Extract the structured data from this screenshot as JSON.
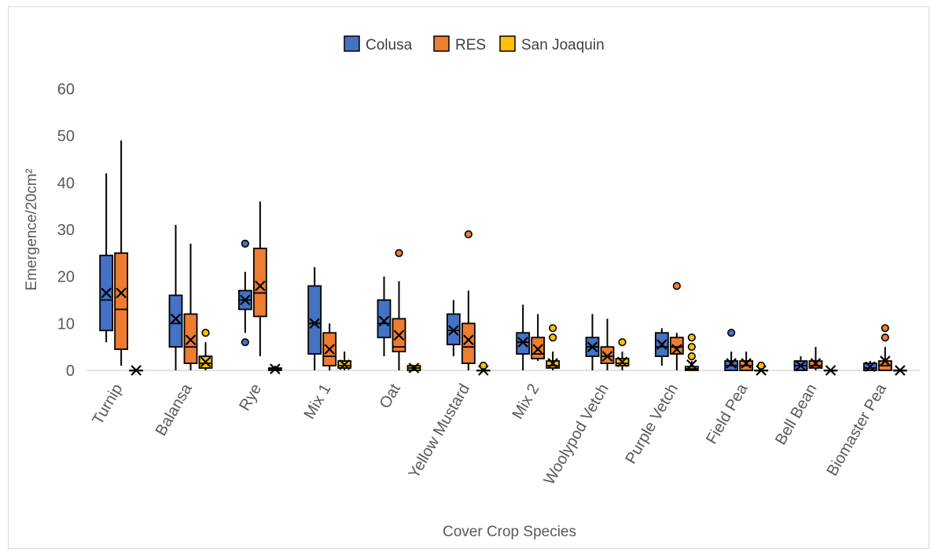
{
  "chart_data": {
    "type": "box",
    "xlabel": "Cover Crop Species",
    "ylabel": "Emergence/20cm²",
    "ylim": [
      0,
      60
    ],
    "yticks": [
      0,
      10,
      20,
      30,
      40,
      50,
      60
    ],
    "grid": false,
    "legend_position": "top-center",
    "categories": [
      "Turnip",
      "Balansa",
      "Rye",
      "Mix 1",
      "Oat",
      "Yellow Mustard",
      "Mix 2",
      "Woolypod Vetch",
      "Purple Vetch",
      "Field Pea",
      "Bell Bean",
      "Biomaster Pea"
    ],
    "series": [
      {
        "name": "Colusa",
        "color": "#4472c4",
        "boxes": [
          {
            "min": 6,
            "q1": 8.5,
            "median": 15,
            "q3": 24.5,
            "max": 42,
            "mean": 16.5,
            "outliers": []
          },
          {
            "min": 0,
            "q1": 5,
            "median": 10,
            "q3": 16,
            "max": 31,
            "mean": 11,
            "outliers": []
          },
          {
            "min": 8,
            "q1": 13,
            "median": 15,
            "q3": 17,
            "max": 21,
            "mean": 15,
            "outliers": [
              6,
              27
            ]
          },
          {
            "min": 0,
            "q1": 3.5,
            "median": 10,
            "q3": 18,
            "max": 22,
            "mean": 10,
            "outliers": []
          },
          {
            "min": 3,
            "q1": 7,
            "median": 10,
            "q3": 15,
            "max": 20,
            "mean": 10.5,
            "outliers": []
          },
          {
            "min": 3,
            "q1": 5.5,
            "median": 8.5,
            "q3": 12,
            "max": 15,
            "mean": 8.5,
            "outliers": []
          },
          {
            "min": 0,
            "q1": 3.5,
            "median": 6,
            "q3": 8,
            "max": 14,
            "mean": 6,
            "outliers": []
          },
          {
            "min": 0,
            "q1": 3,
            "median": 5,
            "q3": 7,
            "max": 12,
            "mean": 5,
            "outliers": []
          },
          {
            "min": 1,
            "q1": 3,
            "median": 5,
            "q3": 8,
            "max": 9,
            "mean": 5.5,
            "outliers": []
          },
          {
            "min": 0,
            "q1": 0,
            "median": 1,
            "q3": 2,
            "max": 4,
            "mean": 1.5,
            "outliers": [
              8
            ]
          },
          {
            "min": 0,
            "q1": 0,
            "median": 1,
            "q3": 2,
            "max": 3,
            "mean": 1,
            "outliers": []
          },
          {
            "min": 0,
            "q1": 0,
            "median": 0.5,
            "q3": 1.5,
            "max": 2,
            "mean": 0.8,
            "outliers": []
          }
        ]
      },
      {
        "name": "RES",
        "color": "#ed7d31",
        "boxes": [
          {
            "min": 1,
            "q1": 4.5,
            "median": 13,
            "q3": 25,
            "max": 49,
            "mean": 16.5,
            "outliers": []
          },
          {
            "min": 0,
            "q1": 1.5,
            "median": 5,
            "q3": 12,
            "max": 27,
            "mean": 6.5,
            "outliers": []
          },
          {
            "min": 3,
            "q1": 11.5,
            "median": 16.5,
            "q3": 26,
            "max": 36,
            "mean": 18,
            "outliers": []
          },
          {
            "min": 0,
            "q1": 1,
            "median": 3,
            "q3": 8,
            "max": 10,
            "mean": 4.5,
            "outliers": []
          },
          {
            "min": 0,
            "q1": 4,
            "median": 5,
            "q3": 11,
            "max": 19,
            "mean": 7.5,
            "outliers": [
              25
            ]
          },
          {
            "min": 0,
            "q1": 1.5,
            "median": 5,
            "q3": 10,
            "max": 17,
            "mean": 6.5,
            "outliers": [
              29
            ]
          },
          {
            "min": 2,
            "q1": 2.5,
            "median": 3.5,
            "q3": 7,
            "max": 12,
            "mean": 4.5,
            "outliers": []
          },
          {
            "min": 0,
            "q1": 1.5,
            "median": 3,
            "q3": 5,
            "max": 11,
            "mean": 3,
            "outliers": []
          },
          {
            "min": 0,
            "q1": 3.5,
            "median": 5,
            "q3": 7,
            "max": 8,
            "mean": 4.5,
            "outliers": [
              18
            ]
          },
          {
            "min": 0,
            "q1": 0,
            "median": 1,
            "q3": 2,
            "max": 4,
            "mean": 1.5,
            "outliers": []
          },
          {
            "min": 0,
            "q1": 0.5,
            "median": 1,
            "q3": 2,
            "max": 5,
            "mean": 1.5,
            "outliers": []
          },
          {
            "min": 0,
            "q1": 0,
            "median": 1,
            "q3": 2,
            "max": 5,
            "mean": 2,
            "outliers": [
              7,
              9
            ]
          }
        ]
      },
      {
        "name": "San Joaquin",
        "color": "#ffc000",
        "boxes": [
          {
            "min": 0,
            "q1": 0,
            "median": 0,
            "q3": 0,
            "max": 0,
            "mean": 0,
            "outliers": []
          },
          {
            "min": 0,
            "q1": 0.5,
            "median": 1.5,
            "q3": 3,
            "max": 6,
            "mean": 1.8,
            "outliers": [
              8
            ]
          },
          {
            "min": 0,
            "q1": 0,
            "median": 0.2,
            "q3": 0.5,
            "max": 1,
            "mean": 0.3,
            "outliers": []
          },
          {
            "min": 0,
            "q1": 0.5,
            "median": 1,
            "q3": 2,
            "max": 4,
            "mean": 1.2,
            "outliers": []
          },
          {
            "min": 0,
            "q1": 0,
            "median": 0.5,
            "q3": 1,
            "max": 1,
            "mean": 0.5,
            "outliers": []
          },
          {
            "min": 0,
            "q1": 0,
            "median": 0,
            "q3": 0,
            "max": 0,
            "mean": 0,
            "outliers": [
              1
            ]
          },
          {
            "min": 0,
            "q1": 0.5,
            "median": 1,
            "q3": 2,
            "max": 4,
            "mean": 1.5,
            "outliers": [
              7,
              9
            ]
          },
          {
            "min": 0,
            "q1": 1,
            "median": 1.5,
            "q3": 2.5,
            "max": 4,
            "mean": 1.8,
            "outliers": [
              6
            ]
          },
          {
            "min": 0,
            "q1": 0,
            "median": 0.3,
            "q3": 0.8,
            "max": 2,
            "mean": 1.2,
            "outliers": [
              3,
              5,
              7
            ]
          },
          {
            "min": 0,
            "q1": 0,
            "median": 0,
            "q3": 0,
            "max": 0,
            "mean": 0,
            "outliers": [
              1
            ]
          },
          {
            "min": 0,
            "q1": 0,
            "median": 0,
            "q3": 0,
            "max": 0,
            "mean": 0,
            "outliers": []
          },
          {
            "min": 0,
            "q1": 0,
            "median": 0,
            "q3": 0,
            "max": 0,
            "mean": 0,
            "outliers": []
          }
        ]
      }
    ]
  }
}
